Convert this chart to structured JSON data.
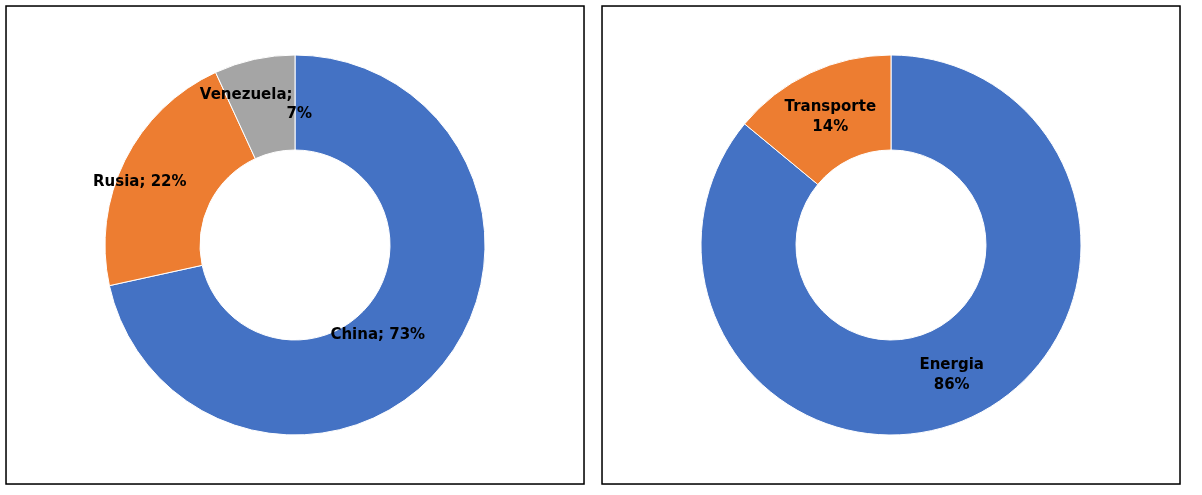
{
  "chart_data": [
    {
      "type": "donut",
      "categories": [
        "China",
        "Rusia",
        "Venezuela"
      ],
      "values": [
        73,
        22,
        7
      ],
      "colors": [
        "#4472c4",
        "#ed7d31",
        "#a5a5a5"
      ],
      "value_labels": [
        "; 73%",
        "; 22%",
        ";\n7%"
      ],
      "legend": false
    },
    {
      "type": "donut",
      "categories": [
        "Energia",
        "Transporte"
      ],
      "values": [
        86,
        14
      ],
      "colors": [
        "#4472c4",
        "#ed7d31"
      ],
      "value_labels": [
        "86%",
        "14%"
      ],
      "legend": false
    }
  ]
}
